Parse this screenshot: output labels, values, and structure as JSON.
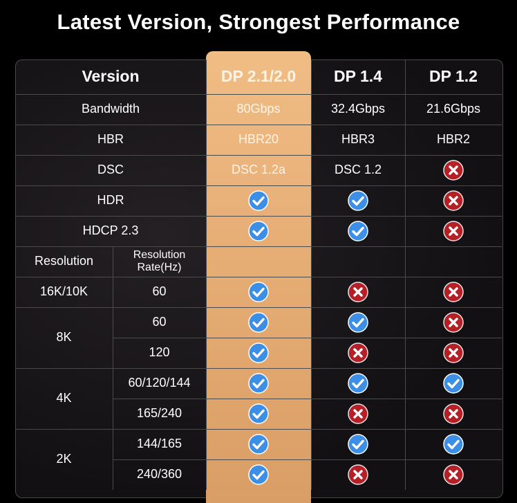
{
  "title": "Latest Version, Strongest Performance",
  "table": {
    "header": {
      "version": "Version",
      "cols": [
        "DP 2.1/2.0",
        "DP 1.4",
        "DP 1.2"
      ]
    },
    "rows": [
      {
        "label": "Bandwidth",
        "cells": [
          "80Gbps",
          "32.4Gbps",
          "21.6Gbps"
        ]
      },
      {
        "label": "HBR",
        "cells": [
          "HBR20",
          "HBR3",
          "HBR2"
        ]
      },
      {
        "label": "DSC",
        "cells": [
          "DSC 1.2a",
          "DSC 1.2",
          "no"
        ]
      },
      {
        "label": "HDR",
        "cells": [
          "yes",
          "yes",
          "no"
        ]
      },
      {
        "label": "HDCP 2.3",
        "cells": [
          "yes",
          "yes",
          "no"
        ]
      }
    ],
    "res_header": {
      "resolution": "Resolution",
      "rate": "Resolution Rate(Hz)"
    },
    "res_groups": [
      {
        "label": "16K/10K",
        "rates": [
          {
            "rate": "60",
            "cells": [
              "yes",
              "no",
              "no"
            ]
          }
        ]
      },
      {
        "label": "8K",
        "rates": [
          {
            "rate": "60",
            "cells": [
              "yes",
              "yes",
              "no"
            ]
          },
          {
            "rate": "120",
            "cells": [
              "yes",
              "no",
              "no"
            ]
          }
        ]
      },
      {
        "label": "4K",
        "rates": [
          {
            "rate": "60/120/144",
            "cells": [
              "yes",
              "yes",
              "yes"
            ]
          },
          {
            "rate": "165/240",
            "cells": [
              "yes",
              "no",
              "no"
            ]
          }
        ]
      },
      {
        "label": "2K",
        "rates": [
          {
            "rate": "144/165",
            "cells": [
              "yes",
              "yes",
              "yes"
            ]
          },
          {
            "rate": "240/360",
            "cells": [
              "yes",
              "no",
              "no"
            ]
          }
        ]
      }
    ]
  },
  "icons": {
    "yes": "check-icon",
    "no": "cross-icon"
  },
  "colors": {
    "highlight": "#e9b079",
    "check": "#3c8fe6",
    "cross": "#b52027"
  }
}
